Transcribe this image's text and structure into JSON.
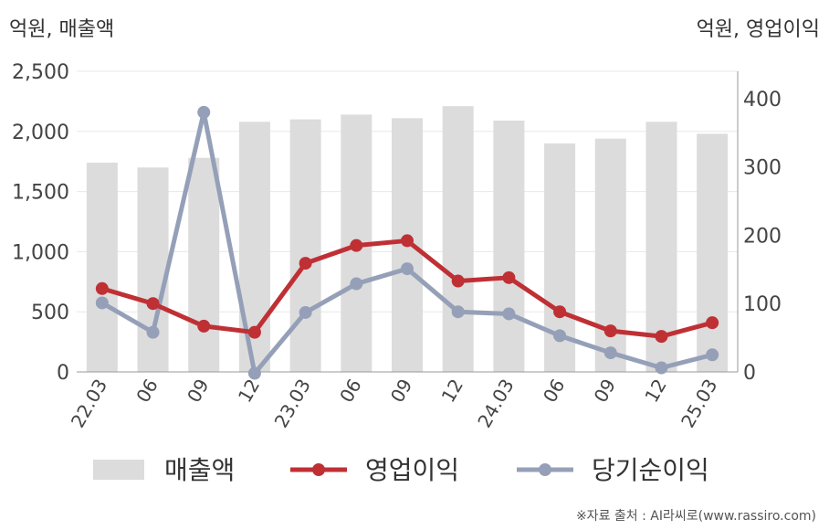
{
  "unit_left": "억원, 매출액",
  "unit_right": "억원, 영업이익",
  "source": "※자료 출처 : AI라씨로(www.rassiro.com)",
  "colors": {
    "revenue": "#dcdcdc",
    "operating_profit": "#bf3035",
    "net_income": "#95a0b8"
  },
  "chart_data": {
    "type": "bar+line",
    "categories": [
      "22.03",
      "06",
      "09",
      "12",
      "23.03",
      "06",
      "09",
      "12",
      "24.03",
      "06",
      "09",
      "12",
      "25.03"
    ],
    "left_axis": {
      "ylim": [
        0,
        2500
      ],
      "ticks": [
        "0",
        "500",
        "1,000",
        "1,500",
        "2,000",
        "2,500"
      ]
    },
    "right_axis": {
      "ylim": [
        0,
        440
      ],
      "ticks": [
        "0",
        "100",
        "200",
        "300",
        "400"
      ]
    },
    "series": [
      {
        "name": "매출액",
        "type": "bar",
        "axis": "left",
        "values": [
          1740,
          1700,
          1780,
          2080,
          2100,
          2140,
          2110,
          2210,
          2090,
          1900,
          1940,
          2080,
          1980
        ]
      },
      {
        "name": "영업이익",
        "type": "line",
        "axis": "right",
        "values": [
          122,
          100,
          67,
          58,
          159,
          185,
          192,
          133,
          138,
          88,
          60,
          52,
          72
        ]
      },
      {
        "name": "당기순이익",
        "type": "line",
        "axis": "right",
        "values": [
          101,
          58,
          380,
          -2,
          87,
          129,
          151,
          88,
          85,
          53,
          28,
          6,
          25
        ]
      }
    ],
    "grid": true,
    "legend_position": "bottom"
  }
}
